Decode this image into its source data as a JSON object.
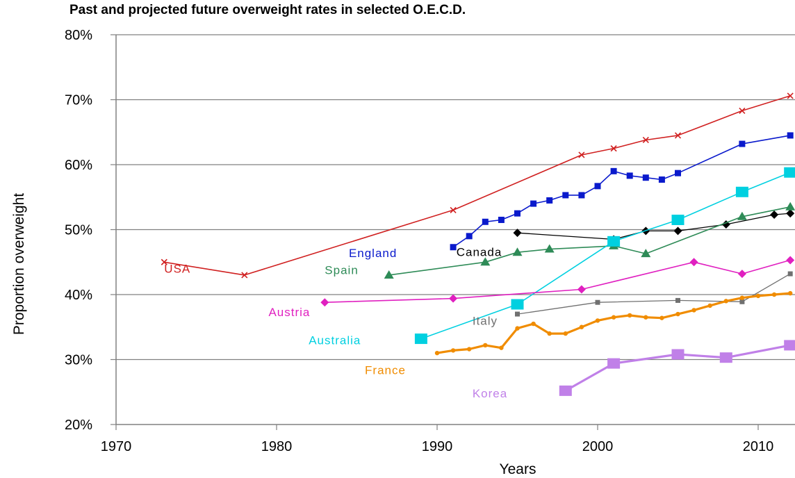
{
  "chart_data": {
    "type": "line",
    "title": "Past and projected future overweight rates in selected O.E.C.D.",
    "xlabel": "Years",
    "ylabel": "Proportion overweight",
    "xlim": [
      1970,
      2020
    ],
    "ylim": [
      20,
      80
    ],
    "x_ticks": [
      "1970",
      "1980",
      "1990",
      "2000",
      "2010"
    ],
    "y_ticks": [
      "20%",
      "30%",
      "40%",
      "50%",
      "60%",
      "70%",
      "80%"
    ],
    "grid": "horizontal",
    "legend": "inline labels",
    "series": [
      {
        "name": "USA",
        "color": "#d02020",
        "marker": "x",
        "label_anchor": [
          1973,
          44
        ],
        "points": [
          [
            1973,
            45
          ],
          [
            1978,
            43
          ],
          [
            1991,
            53
          ],
          [
            1999,
            61.5
          ],
          [
            2001,
            62.5
          ],
          [
            2003,
            63.8
          ],
          [
            2005,
            64.5
          ],
          [
            2009,
            68.3
          ],
          [
            2012,
            70.6
          ]
        ]
      },
      {
        "name": "England",
        "color": "#0a1acc",
        "marker": "square",
        "label_anchor": [
          1984.5,
          46.4
        ],
        "points": [
          [
            1991,
            47.3
          ],
          [
            1992,
            49
          ],
          [
            1993,
            51.2
          ],
          [
            1994,
            51.5
          ],
          [
            1995,
            52.5
          ],
          [
            1996,
            54
          ],
          [
            1997,
            54.5
          ],
          [
            1998,
            55.3
          ],
          [
            1999,
            55.3
          ],
          [
            2000,
            56.7
          ],
          [
            2001,
            59
          ],
          [
            2002,
            58.3
          ],
          [
            2003,
            58
          ],
          [
            2004,
            57.7
          ],
          [
            2005,
            58.7
          ],
          [
            2009,
            63.2
          ],
          [
            2012,
            64.5
          ]
        ]
      },
      {
        "name": "Canada",
        "color": "#000000",
        "marker": "diamond",
        "label_anchor": [
          1991.2,
          46.6
        ],
        "points": [
          [
            1995,
            49.5
          ],
          [
            2001,
            48.5
          ],
          [
            2003,
            49.8
          ],
          [
            2005,
            49.8
          ],
          [
            2008,
            50.8
          ],
          [
            2011,
            52.3
          ],
          [
            2012,
            52.5
          ]
        ]
      },
      {
        "name": "Spain",
        "color": "#2e8b57",
        "marker": "triangle",
        "label_anchor": [
          1983,
          43.8
        ],
        "points": [
          [
            1987,
            43
          ],
          [
            1993,
            45
          ],
          [
            1995,
            46.5
          ],
          [
            1997,
            47
          ],
          [
            2001,
            47.5
          ],
          [
            2003,
            46.3
          ],
          [
            2009,
            52
          ],
          [
            2012,
            53.5
          ]
        ]
      },
      {
        "name": "Australia",
        "color": "#00d0e0",
        "marker": "square-large",
        "label_anchor": [
          1982,
          33
        ],
        "points": [
          [
            1989,
            33.2
          ],
          [
            1995,
            38.5
          ],
          [
            2001,
            48.2
          ],
          [
            2005,
            51.5
          ],
          [
            2009,
            55.8
          ],
          [
            2012,
            58.8
          ]
        ]
      },
      {
        "name": "Austria",
        "color": "#e020c0",
        "marker": "diamond",
        "label_anchor": [
          1979.5,
          37.3
        ],
        "points": [
          [
            1983,
            38.8
          ],
          [
            1991,
            39.4
          ],
          [
            1999,
            40.8
          ],
          [
            2006,
            45
          ],
          [
            2009,
            43.2
          ],
          [
            2012,
            45.3
          ]
        ]
      },
      {
        "name": "Italy",
        "color": "#707070",
        "marker": "square-small",
        "label_anchor": [
          1992.2,
          36
        ],
        "points": [
          [
            1995,
            37
          ],
          [
            2000,
            38.8
          ],
          [
            2005,
            39.1
          ],
          [
            2009,
            38.9
          ],
          [
            2012,
            43.2
          ]
        ]
      },
      {
        "name": "France",
        "color": "#f08c00",
        "marker": "dot",
        "label_anchor": [
          1985.5,
          28.4
        ],
        "points": [
          [
            1990,
            31
          ],
          [
            1991,
            31.4
          ],
          [
            1992,
            31.6
          ],
          [
            1993,
            32.2
          ],
          [
            1994,
            31.8
          ],
          [
            1995,
            34.8
          ],
          [
            1996,
            35.5
          ],
          [
            1997,
            34
          ],
          [
            1998,
            34
          ],
          [
            1999,
            35
          ],
          [
            2000,
            36
          ],
          [
            2001,
            36.5
          ],
          [
            2002,
            36.8
          ],
          [
            2003,
            36.5
          ],
          [
            2004,
            36.4
          ],
          [
            2005,
            37
          ],
          [
            2006,
            37.6
          ],
          [
            2007,
            38.3
          ],
          [
            2008,
            39
          ],
          [
            2009,
            39.5
          ],
          [
            2010,
            39.8
          ],
          [
            2011,
            40
          ],
          [
            2012,
            40.2
          ]
        ]
      },
      {
        "name": "Korea",
        "color": "#c080e8",
        "marker": "square-large",
        "label_anchor": [
          1992.2,
          24.8
        ],
        "points": [
          [
            1998,
            25.2
          ],
          [
            2001,
            29.4
          ],
          [
            2005,
            30.8
          ],
          [
            2008,
            30.3
          ],
          [
            2012,
            32.2
          ]
        ]
      }
    ]
  }
}
